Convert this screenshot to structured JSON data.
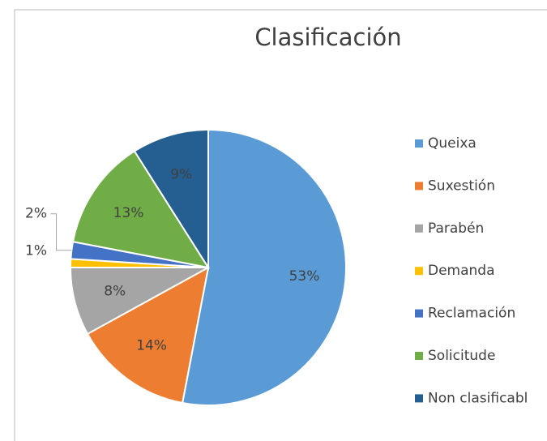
{
  "chart_data": {
    "type": "pie",
    "title": "Clasificación",
    "categories": [
      "Queixa",
      "Suxestión",
      "Parabén",
      "Demanda",
      "Reclamación",
      "Solicitude",
      "Non clasificabl"
    ],
    "values": [
      53,
      14,
      8,
      1,
      2,
      13,
      9
    ],
    "value_labels": [
      "53%",
      "14%",
      "8%",
      "1%",
      "2%",
      "13%",
      "9%"
    ],
    "colors": [
      "#5b9bd5",
      "#ed7d31",
      "#a5a5a5",
      "#ffc000",
      "#4472c4",
      "#70ad47",
      "#255e91"
    ],
    "legend": "right"
  }
}
